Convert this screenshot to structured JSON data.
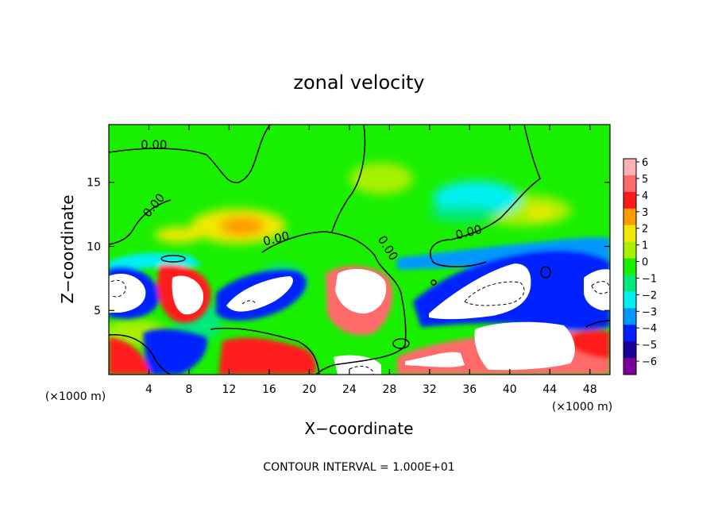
{
  "chart_data": {
    "type": "heatmap",
    "title": "zonal velocity",
    "xlabel": "X−coordinate",
    "ylabel": "Z−coordinate",
    "x_unit_left": "(×1000 m)",
    "x_unit_right": "(×1000 m)",
    "xlim": [
      0,
      50
    ],
    "ylim": [
      0,
      19.5
    ],
    "x_ticks": [
      4,
      8,
      12,
      16,
      20,
      24,
      28,
      32,
      36,
      40,
      44,
      48
    ],
    "y_ticks": [
      5,
      10,
      15
    ],
    "colorbar": {
      "ticks": [
        6,
        5,
        4,
        3,
        2,
        1,
        0,
        -1,
        -2,
        -3,
        -4,
        -5,
        -6
      ],
      "levels": [
        {
          "value": 6,
          "color": "#ffb0b0"
        },
        {
          "value": 5,
          "color": "#ff6a6a"
        },
        {
          "value": 4,
          "color": "#ff1a1a"
        },
        {
          "value": 3,
          "color": "#ff9a00"
        },
        {
          "value": 2,
          "color": "#f0e800"
        },
        {
          "value": 1,
          "color": "#a8f000"
        },
        {
          "value": 0,
          "color": "#18f000"
        },
        {
          "value": -1,
          "color": "#00e87a"
        },
        {
          "value": -2,
          "color": "#00f0f0"
        },
        {
          "value": -3,
          "color": "#0098ff"
        },
        {
          "value": -4,
          "color": "#0020ff"
        },
        {
          "value": -5,
          "color": "#1a0098"
        },
        {
          "value": -6,
          "color": "#7a0098"
        }
      ]
    },
    "contour_labels": [
      "0.00",
      "0.00",
      "0.00",
      "0.00",
      "0.00"
    ],
    "footer": "CONTOUR INTERVAL = 1.000E+01"
  }
}
